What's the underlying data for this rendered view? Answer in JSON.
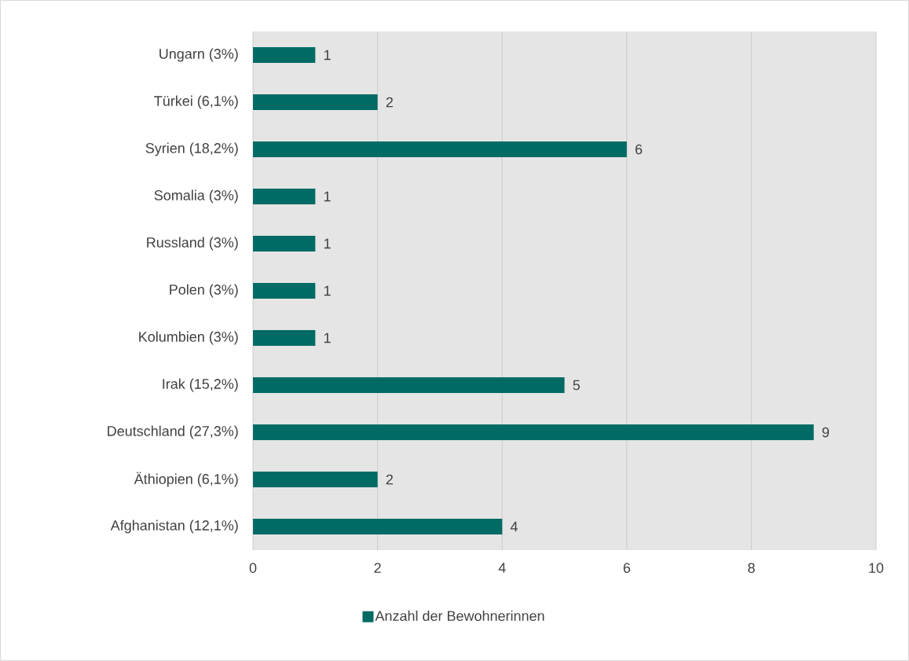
{
  "chart_data": {
    "type": "bar",
    "orientation": "horizontal",
    "categories": [
      "Ungarn (3%)",
      "Türkei (6,1%)",
      "Syrien (18,2%)",
      "Somalia (3%)",
      "Russland (3%)",
      "Polen (3%)",
      "Kolumbien (3%)",
      "Irak (15,2%)",
      "Deutschland (27,3%)",
      "Äthiopien (6,1%)",
      "Afghanistan (12,1%)"
    ],
    "series": [
      {
        "name": "Anzahl der Bewohnerinnen",
        "color": "#006a64",
        "values": [
          1,
          2,
          6,
          1,
          1,
          1,
          1,
          5,
          9,
          2,
          4
        ]
      }
    ],
    "xlim": [
      0,
      10
    ],
    "xticks": [
      0,
      2,
      4,
      6,
      8,
      10
    ],
    "grid": "x",
    "legend": "bottom",
    "data_labels": true
  }
}
